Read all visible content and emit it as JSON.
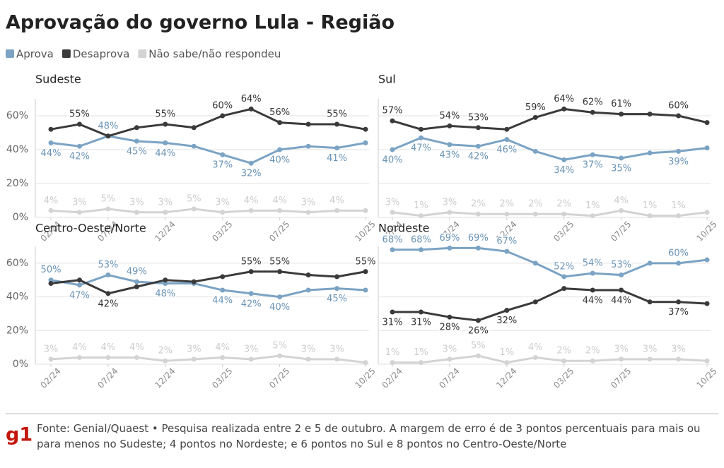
{
  "title": "Aprovação do governo Lula - Região",
  "legend": [
    {
      "name": "Aprova",
      "color": "#7ba3c4"
    },
    {
      "name": "Desaprova",
      "color": "#3a3a3a"
    },
    {
      "name": "Não sabe/não respondeu",
      "color": "#d3d3d3"
    }
  ],
  "source": "Fonte: Genial/Quaest • Pesquisa realizada entre 2 e 5 de outubro. A margem de erro é de 3 pontos percentuais para mais ou para menos no Sudeste; 4 pontos no Nordeste; e 6 pontos no Sul e 8 pontos no Centro-Oeste/Norte",
  "logo": "g1",
  "chart_data": [
    {
      "type": "line",
      "title": "Sudeste",
      "categories": [
        "02/24",
        null,
        "07/24",
        null,
        "12/24",
        null,
        "03/25",
        null,
        "07/25",
        null,
        null,
        "10/25"
      ],
      "ylim": [
        0,
        70
      ],
      "yticks": [
        {
          "value": 0,
          "label": "0%"
        },
        {
          "value": 20,
          "label": "20%"
        },
        {
          "value": 40,
          "label": "40%"
        },
        {
          "value": 60,
          "label": "60%"
        }
      ],
      "series": [
        {
          "values": [
            44,
            42,
            48,
            45,
            44,
            42,
            37,
            32,
            40,
            42,
            41,
            44
          ],
          "value_labels": [
            "44%",
            "42%",
            "48%",
            "45%",
            "44%",
            null,
            "37%",
            "32%",
            "40%",
            null,
            "41%",
            null
          ]
        },
        {
          "values": [
            52,
            55,
            48,
            53,
            55,
            53,
            60,
            64,
            56,
            55,
            55,
            52
          ],
          "value_labels": [
            null,
            "55%",
            null,
            null,
            "55%",
            null,
            "60%",
            "64%",
            "56%",
            null,
            "55%",
            null
          ]
        },
        {
          "values": [
            4,
            3,
            5,
            3,
            3,
            5,
            3,
            4,
            4,
            3,
            4,
            4
          ],
          "value_labels": [
            "4%",
            "3%",
            "5%",
            "3%",
            "3%",
            "5%",
            "3%",
            "4%",
            "4%",
            "3%",
            "4%",
            null
          ]
        }
      ]
    },
    {
      "type": "line",
      "title": "Sul",
      "categories": [
        "02/24",
        null,
        "07/24",
        null,
        "12/24",
        null,
        "03/25",
        null,
        "07/25",
        null,
        null,
        "10/25"
      ],
      "ylim": [
        0,
        70
      ],
      "yticks": [
        0,
        20,
        40,
        60
      ],
      "series": [
        {
          "values": [
            40,
            47,
            43,
            42,
            46,
            39,
            34,
            37,
            35,
            38,
            39,
            41
          ],
          "value_labels": [
            "40%",
            "47%",
            "43%",
            "42%",
            "46%",
            null,
            "34%",
            "37%",
            "35%",
            null,
            "39%",
            null
          ]
        },
        {
          "values": [
            57,
            52,
            54,
            53,
            52,
            59,
            64,
            62,
            61,
            61,
            60,
            56
          ],
          "value_labels": [
            "57%",
            null,
            "54%",
            "53%",
            null,
            "59%",
            "64%",
            "62%",
            "61%",
            null,
            "60%",
            null
          ]
        },
        {
          "values": [
            3,
            1,
            3,
            2,
            2,
            2,
            2,
            1,
            4,
            1,
            1,
            3
          ],
          "value_labels": [
            "3%",
            "1%",
            "3%",
            "2%",
            "2%",
            "2%",
            "2%",
            "1%",
            "4%",
            "1%",
            "1%",
            null
          ]
        }
      ]
    },
    {
      "type": "line",
      "title": "Centro-Oeste/Norte",
      "categories": [
        "02/24",
        null,
        "07/24",
        null,
        "12/24",
        null,
        "03/25",
        null,
        "07/25",
        null,
        null,
        "10/25"
      ],
      "ylim": [
        0,
        70
      ],
      "yticks": [
        {
          "value": 0,
          "label": "0%"
        },
        {
          "value": 20,
          "label": "20%"
        },
        {
          "value": 40,
          "label": "40%"
        },
        {
          "value": 60,
          "label": "60%"
        }
      ],
      "series": [
        {
          "values": [
            50,
            47,
            53,
            49,
            48,
            48,
            44,
            42,
            40,
            44,
            45,
            44
          ],
          "value_labels": [
            "50%",
            "47%",
            "53%",
            "49%",
            "48%",
            null,
            "44%",
            "42%",
            "40%",
            null,
            "45%",
            null
          ]
        },
        {
          "values": [
            48,
            50,
            42,
            46,
            50,
            49,
            52,
            55,
            55,
            53,
            52,
            55
          ],
          "value_labels": [
            null,
            null,
            "42%",
            null,
            null,
            null,
            null,
            "55%",
            "55%",
            null,
            null,
            "55%"
          ]
        },
        {
          "values": [
            3,
            4,
            4,
            4,
            2,
            3,
            4,
            3,
            5,
            3,
            3,
            1
          ],
          "value_labels": [
            "3%",
            "4%",
            "4%",
            "4%",
            "2%",
            "3%",
            "4%",
            "3%",
            "5%",
            "3%",
            "3%",
            null
          ]
        }
      ]
    },
    {
      "type": "line",
      "title": "Nordeste",
      "categories": [
        "02/24",
        null,
        "07/24",
        null,
        "12/24",
        null,
        "03/25",
        null,
        "07/25",
        null,
        null,
        "10/25"
      ],
      "ylim": [
        0,
        70
      ],
      "yticks": [
        0,
        20,
        40,
        60
      ],
      "series": [
        {
          "values": [
            68,
            68,
            69,
            69,
            67,
            60,
            52,
            54,
            53,
            60,
            60,
            62
          ],
          "value_labels": [
            "68%",
            "68%",
            "69%",
            "69%",
            "67%",
            null,
            "52%",
            "54%",
            "53%",
            null,
            "60%",
            null
          ]
        },
        {
          "values": [
            31,
            31,
            28,
            26,
            32,
            37,
            45,
            44,
            44,
            37,
            37,
            36
          ],
          "value_labels": [
            "31%",
            "31%",
            "28%",
            "26%",
            "32%",
            null,
            null,
            "44%",
            "44%",
            null,
            "37%",
            null
          ]
        },
        {
          "values": [
            1,
            1,
            3,
            5,
            1,
            4,
            2,
            2,
            3,
            3,
            3,
            2
          ],
          "value_labels": [
            "1%",
            "1%",
            "3%",
            "5%",
            "1%",
            "4%",
            "2%",
            "2%",
            "3%",
            "3%",
            "3%",
            null
          ]
        }
      ]
    }
  ]
}
